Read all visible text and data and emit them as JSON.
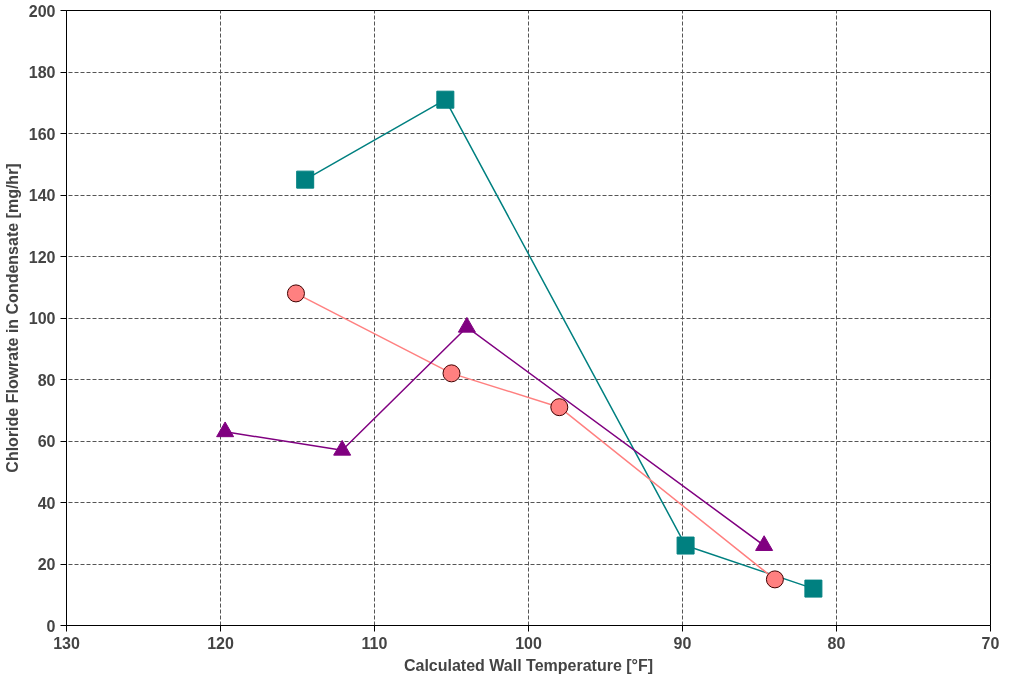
{
  "chart_data": {
    "type": "line",
    "xlabel": "Calculated Wall Temperature [°F]",
    "ylabel": "Chloride Flowrate in Condensate [mg/hr]",
    "xlim": [
      130,
      70
    ],
    "xticks": [
      130,
      120,
      110,
      100,
      90,
      80,
      70
    ],
    "ylim": [
      0,
      200
    ],
    "yticks": [
      0,
      20,
      40,
      60,
      80,
      100,
      120,
      140,
      160,
      180,
      200
    ],
    "grid": true,
    "line_style": "solid",
    "series": [
      {
        "color": "#008080",
        "marker": "square",
        "x": [
          114.5,
          105.4,
          89.8,
          81.5
        ],
        "values": [
          145,
          171,
          26,
          12
        ]
      },
      {
        "color": "#ff8080",
        "marker": "circle",
        "x": [
          115.1,
          105.0,
          98.0,
          84.0
        ],
        "values": [
          108,
          82,
          71,
          15
        ]
      },
      {
        "color": "#800080",
        "marker": "triangle",
        "x": [
          119.7,
          112.1,
          104.0,
          84.7
        ],
        "values": [
          63,
          57,
          97,
          26
        ]
      }
    ]
  }
}
